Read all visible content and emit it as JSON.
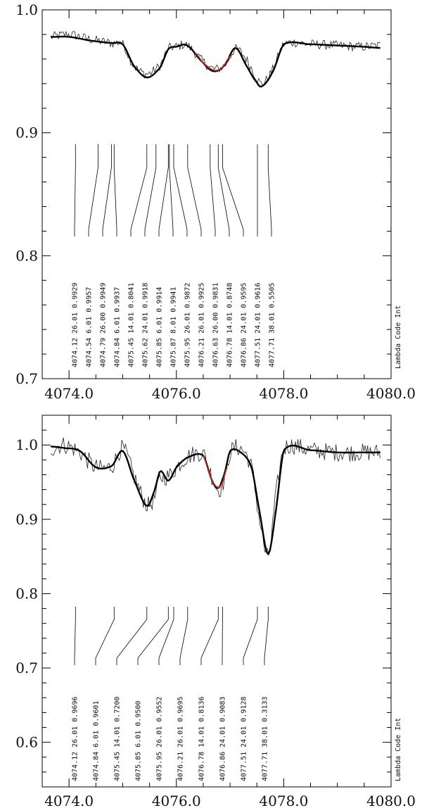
{
  "chart_data": [
    {
      "type": "line",
      "title": "",
      "xlabel": "",
      "ylabel": "",
      "xlim": [
        4073.5,
        4080.0
      ],
      "ylim": [
        0.7,
        1.0
      ],
      "x_ticks": [
        {
          "value": 4074.0,
          "label": "4074.0"
        },
        {
          "value": 4076.0,
          "label": "4076.0"
        },
        {
          "value": 4078.0,
          "label": "4078.0"
        },
        {
          "value": 4080.0,
          "label": "4080.0"
        }
      ],
      "y_ticks": [
        {
          "value": 0.7,
          "label": "0.7"
        },
        {
          "value": 0.8,
          "label": "0.8"
        },
        {
          "value": 0.9,
          "label": "0.9"
        },
        {
          "value": 1.0,
          "label": "1.0"
        }
      ],
      "header_label": "Lambda Code Int",
      "continuum": 0.975,
      "series": [
        {
          "role": "observed",
          "color": "#222222",
          "noise": 0.004,
          "x": [
            4073.66,
            4074.0,
            4074.4,
            4074.8,
            4075.0,
            4075.2,
            4075.45,
            4075.7,
            4075.85,
            4076.0,
            4076.2,
            4076.5,
            4076.7,
            4076.9,
            4077.1,
            4077.3,
            4077.5,
            4077.6,
            4077.8,
            4078.0,
            4078.5,
            4079.0,
            4079.5,
            4079.8
          ],
          "y": [
            0.978,
            0.98,
            0.976,
            0.973,
            0.972,
            0.955,
            0.948,
            0.955,
            0.968,
            0.97,
            0.971,
            0.958,
            0.952,
            0.955,
            0.968,
            0.96,
            0.945,
            0.94,
            0.952,
            0.972,
            0.972,
            0.971,
            0.97,
            0.971
          ]
        },
        {
          "role": "synthetic",
          "color": "#000000",
          "x": [
            4073.66,
            4074.0,
            4074.4,
            4074.8,
            4075.0,
            4075.2,
            4075.45,
            4075.7,
            4075.85,
            4076.0,
            4076.2,
            4076.5,
            4076.7,
            4076.9,
            4077.1,
            4077.3,
            4077.5,
            4077.6,
            4077.8,
            4078.0,
            4078.5,
            4079.0,
            4079.5,
            4079.8
          ],
          "y": [
            0.978,
            0.978,
            0.975,
            0.973,
            0.972,
            0.955,
            0.945,
            0.953,
            0.968,
            0.97,
            0.971,
            0.957,
            0.95,
            0.955,
            0.969,
            0.955,
            0.941,
            0.938,
            0.95,
            0.972,
            0.972,
            0.971,
            0.97,
            0.969
          ]
        },
        {
          "role": "fit",
          "color": "#c0392b",
          "x": [
            4076.35,
            4076.5,
            4076.7,
            4076.85,
            4077.0
          ],
          "y": [
            0.965,
            0.957,
            0.951,
            0.953,
            0.962
          ]
        }
      ],
      "line_list": [
        {
          "lambda": 4074.12,
          "text": "4074.12 26.01 0.9929"
        },
        {
          "lambda": 4074.54,
          "text": "4074.54  6.01 0.9957"
        },
        {
          "lambda": 4074.79,
          "text": "4074.79 26.00 0.9949"
        },
        {
          "lambda": 4074.84,
          "text": "4074.84  6.01 0.9937"
        },
        {
          "lambda": 4075.45,
          "text": "4075.45 14.01 0.8041"
        },
        {
          "lambda": 4075.62,
          "text": "4075.62 24.01 0.9918"
        },
        {
          "lambda": 4075.85,
          "text": "4075.85  6.01 0.9914"
        },
        {
          "lambda": 4075.87,
          "text": "4075.87  8.01 0.9941"
        },
        {
          "lambda": 4075.95,
          "text": "4075.95 26.01 0.9872"
        },
        {
          "lambda": 4076.21,
          "text": "4076.21 26.01 0.9925"
        },
        {
          "lambda": 4076.63,
          "text": "4076.63 26.00 0.9831"
        },
        {
          "lambda": 4076.78,
          "text": "4076.78 14.01 0.8748"
        },
        {
          "lambda": 4076.86,
          "text": "4076.86 24.01 0.9595"
        },
        {
          "lambda": 4077.51,
          "text": "4077.51 24.01 0.9616"
        },
        {
          "lambda": 4077.71,
          "text": "4077.71 38.01 0.5505"
        }
      ]
    },
    {
      "type": "line",
      "title": "",
      "xlabel": "",
      "ylabel": "",
      "xlim": [
        4073.5,
        4080.0
      ],
      "ylim": [
        0.54,
        1.04
      ],
      "x_ticks": [
        {
          "value": 4074.0,
          "label": "4074.0"
        },
        {
          "value": 4076.0,
          "label": "4076.0"
        },
        {
          "value": 4078.0,
          "label": "4078.0"
        },
        {
          "value": 4080.0,
          "label": "4080.0"
        }
      ],
      "y_ticks": [
        {
          "value": 0.6,
          "label": "0.6"
        },
        {
          "value": 0.7,
          "label": "0.7"
        },
        {
          "value": 0.8,
          "label": "0.8"
        },
        {
          "value": 0.9,
          "label": "0.9"
        },
        {
          "value": 1.0,
          "label": "1.0"
        }
      ],
      "header_label": "Lambda Code Int",
      "continuum": 0.995,
      "series": [
        {
          "role": "observed",
          "color": "#222222",
          "noise": 0.012,
          "x": [
            4073.66,
            4073.9,
            4074.2,
            4074.5,
            4074.8,
            4075.0,
            4075.2,
            4075.45,
            4075.6,
            4075.7,
            4075.85,
            4076.0,
            4076.2,
            4076.5,
            4076.65,
            4076.78,
            4076.9,
            4077.0,
            4077.2,
            4077.4,
            4077.55,
            4077.71,
            4077.85,
            4078.0,
            4078.5,
            4079.0,
            4079.5,
            4079.8
          ],
          "y": [
            0.995,
            1.0,
            0.99,
            0.97,
            0.972,
            0.995,
            0.96,
            0.92,
            0.93,
            0.955,
            0.958,
            0.97,
            0.984,
            0.988,
            0.96,
            0.94,
            0.955,
            0.99,
            0.995,
            0.97,
            0.9,
            0.85,
            0.93,
            0.995,
            0.993,
            0.99,
            0.99,
            0.99
          ]
        },
        {
          "role": "synthetic",
          "color": "#000000",
          "x": [
            4073.66,
            4073.9,
            4074.2,
            4074.5,
            4074.8,
            4075.0,
            4075.2,
            4075.45,
            4075.6,
            4075.7,
            4075.85,
            4076.0,
            4076.2,
            4076.5,
            4076.65,
            4076.78,
            4076.9,
            4077.0,
            4077.2,
            4077.4,
            4077.55,
            4077.71,
            4077.85,
            4078.0,
            4078.5,
            4079.0,
            4079.5,
            4079.8
          ],
          "y": [
            0.998,
            0.996,
            0.992,
            0.97,
            0.972,
            0.992,
            0.955,
            0.918,
            0.94,
            0.965,
            0.952,
            0.97,
            0.983,
            0.986,
            0.955,
            0.942,
            0.962,
            0.992,
            0.99,
            0.97,
            0.91,
            0.853,
            0.91,
            0.993,
            0.993,
            0.99,
            0.99,
            0.99
          ]
        },
        {
          "role": "fit",
          "color": "#c0392b",
          "x": [
            4076.5,
            4076.62,
            4076.75,
            4076.85,
            4076.95
          ],
          "y": [
            0.985,
            0.96,
            0.944,
            0.948,
            0.97
          ]
        }
      ],
      "line_list": [
        {
          "lambda": 4074.12,
          "text": "4074.12 26.01 0.9696"
        },
        {
          "lambda": 4074.84,
          "text": "4074.84  6.01 0.9601"
        },
        {
          "lambda": 4075.45,
          "text": "4075.45 14.01 0.7200"
        },
        {
          "lambda": 4075.85,
          "text": "4075.85  6.01 0.9500"
        },
        {
          "lambda": 4075.95,
          "text": "4075.95 26.01 0.9552"
        },
        {
          "lambda": 4076.21,
          "text": "4076.21 26.01 0.9695"
        },
        {
          "lambda": 4076.78,
          "text": "4076.78 14.01 0.8136"
        },
        {
          "lambda": 4076.86,
          "text": "4076.86 24.01 0.9083"
        },
        {
          "lambda": 4077.51,
          "text": "4077.51 24.01 0.9128"
        },
        {
          "lambda": 4077.71,
          "text": "4077.71 38.01 0.3133"
        }
      ]
    }
  ]
}
